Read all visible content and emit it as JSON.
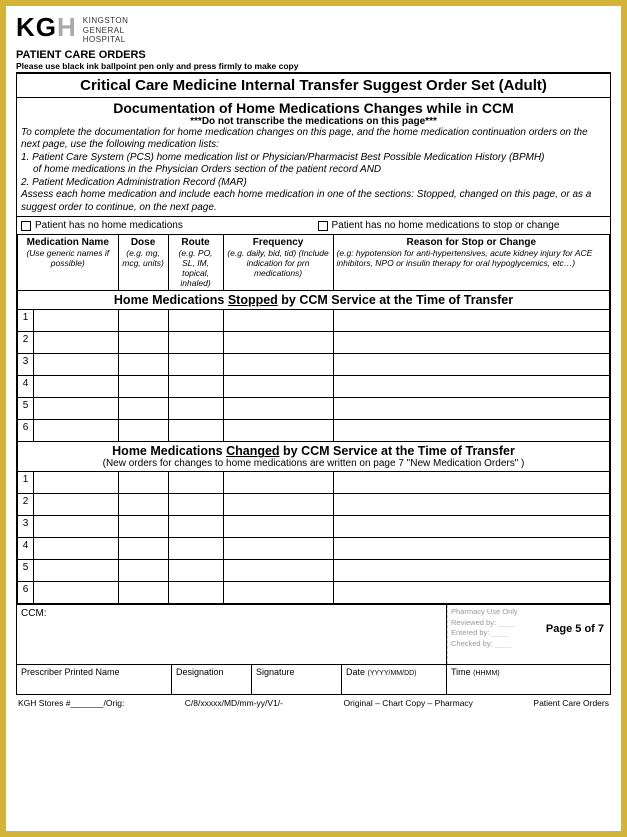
{
  "logo_text": "KG",
  "logo_plus": "H",
  "hospital_name_l1": "KINGSTON",
  "hospital_name_l2": "GENERAL",
  "hospital_name_l3": "HOSPITAL",
  "patient_care_orders": "PATIENT CARE ORDERS",
  "ink_note": "Please use black ink ballpoint pen only and press firmly to make copy",
  "title": "Critical Care Medicine Internal Transfer Suggest Order Set (Adult)",
  "doc_title": "Documentation of Home Medications Changes while in CCM",
  "warn": "***Do not transcribe the medications on this page***",
  "instr1": "To complete the documentation for home medication changes on this page, and the home medication continuation orders on the next page, use the following medication lists:",
  "instr2a": "1.  Patient Care System (PCS) home medication list or Physician/Pharmacist Best Possible Medication History (BPMH)",
  "instr2b": "of home medications in the Physician Orders section of the patient record AND",
  "instr3": "2.  Patient Medication Administration Record (MAR)",
  "instr4": "Assess each home medication and include each home medication in one of the sections:  Stopped, changed on this page, or as a suggest order to continue, on the next page.",
  "chk1": "Patient has no home medications",
  "chk2": "Patient has no home medications to stop or change",
  "cols": {
    "name": "Medication Name",
    "name_sub": "(Use generic names if possible)",
    "dose": "Dose",
    "dose_sub": "(e.g. mg, mcg, units)",
    "route": "Route",
    "route_sub": "(e.g. PO, SL, IM, topical, inhaled)",
    "freq": "Frequency",
    "freq_sub": "(e.g. daily, bid, tid) (Include indication for prn medications)",
    "reason": "Reason for Stop or Change",
    "reason_sub": "(e.g: hypotension for anti-hypertensives, acute kidney injury for ACE inhibitors, NPO or insulin therapy for oral hypoglycemics, etc…)"
  },
  "section_stopped_pre": "Home Medications ",
  "section_stopped_u": "Stopped",
  "section_stopped_post": " by CCM Service at the Time of Transfer",
  "section_changed_pre": "Home Medications ",
  "section_changed_u": "Changed",
  "section_changed_post": " by CCM Service at the Time of Transfer",
  "changed_sub": "(New orders for changes to home medications are written on page 7  \"New Medication Orders\" )",
  "rows": [
    "1",
    "2",
    "3",
    "4",
    "5",
    "6"
  ],
  "ccm_label": "CCM:",
  "pharm": {
    "title": "Pharmacy Use Only",
    "reviewed": "Reviewed by:",
    "entered": "Entered by:",
    "checked": "Checked by:"
  },
  "sign": {
    "name": "Prescriber Printed Name",
    "designation": "Designation",
    "signature": "Signature",
    "date": "Date ",
    "date_fmt": "(YYYY/MM/DD)",
    "time": "Time ",
    "time_fmt": "(HHMM)"
  },
  "page_num": "Page 5 of 7",
  "footer": {
    "stores": "KGH Stores #_______/Orig:",
    "code": "C/8/xxxxx/MD/mm-yy/V1/-",
    "orig": "Original – Chart      Copy – Pharmacy",
    "pco": "Patient Care Orders"
  }
}
